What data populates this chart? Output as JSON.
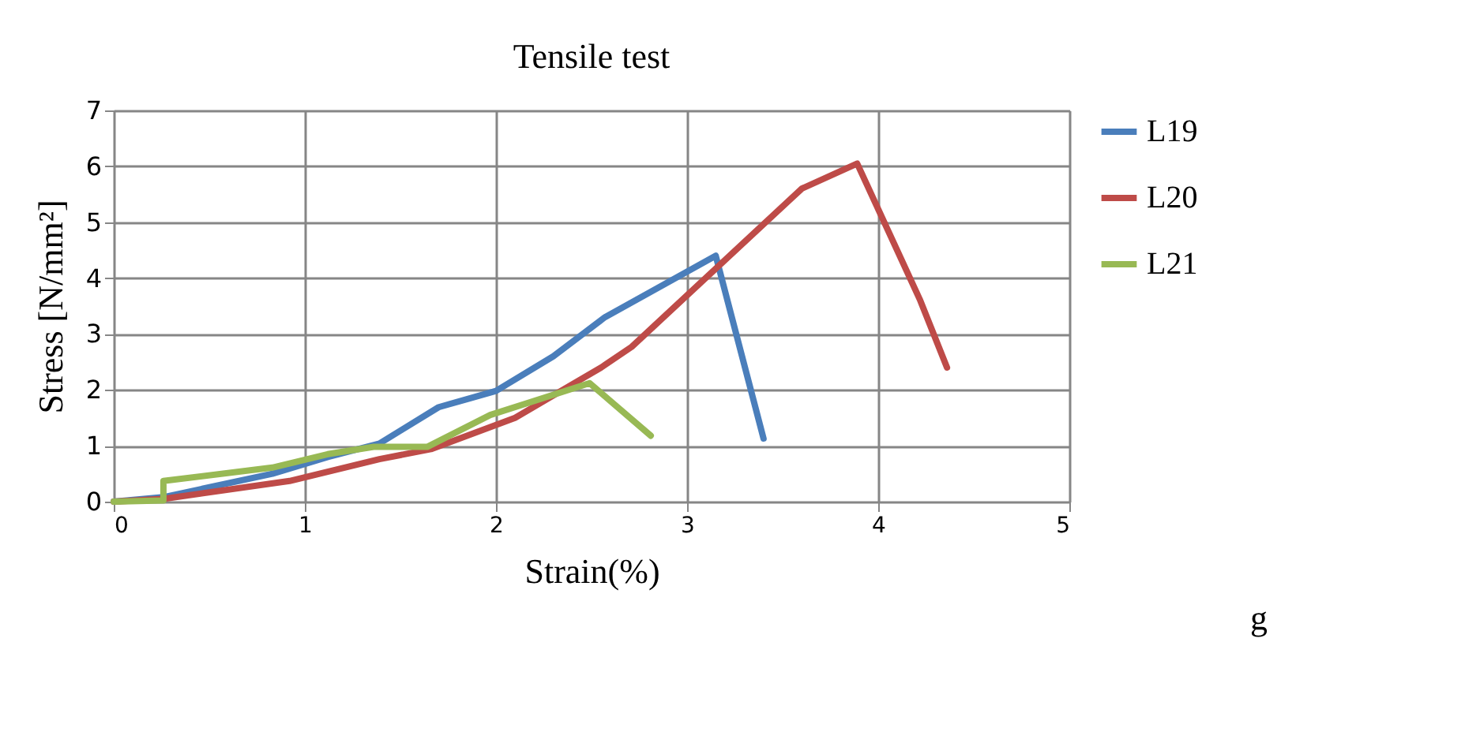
{
  "chart_data": {
    "type": "line",
    "title": "Tensile test",
    "xlabel": "Strain(%)",
    "ylabel": "Stress  [N/mm²]",
    "xlim": [
      0,
      5
    ],
    "xticks": [
      0,
      1,
      2,
      3,
      4,
      5
    ],
    "ylim": [
      0,
      7
    ],
    "yticks": [
      0,
      1,
      2,
      3,
      4,
      5,
      6,
      7
    ],
    "grid": true,
    "legend": "right",
    "marker": "none",
    "line_style": "solid",
    "annotations": [
      "g"
    ],
    "series": [
      {
        "name": "L19",
        "color": "#4a7ebb",
        "x": [
          0,
          0.26,
          0.83,
          1.12,
          1.39,
          1.7,
          2.0,
          2.3,
          2.57,
          3.15,
          3.4
        ],
        "values": [
          0,
          0.08,
          0.5,
          0.8,
          1.04,
          1.69,
          1.98,
          2.6,
          3.3,
          4.4,
          1.13
        ]
      },
      {
        "name": "L20",
        "color": "#be4b48",
        "x": [
          0,
          0.26,
          0.92,
          1.39,
          1.66,
          2.1,
          2.55,
          2.71,
          3.6,
          3.89,
          4.22,
          4.36
        ],
        "values": [
          0,
          0.05,
          0.37,
          0.76,
          0.94,
          1.5,
          2.4,
          2.77,
          5.6,
          6.05,
          3.6,
          2.4
        ]
      },
      {
        "name": "L21",
        "color": "#98b954",
        "x": [
          0,
          0.26,
          0.26,
          0.83,
          1.12,
          1.36,
          1.64,
          1.97,
          2.49,
          2.81
        ],
        "values": [
          0,
          0.02,
          0.37,
          0.61,
          0.85,
          0.98,
          0.98,
          1.55,
          2.12,
          1.18
        ]
      }
    ]
  }
}
